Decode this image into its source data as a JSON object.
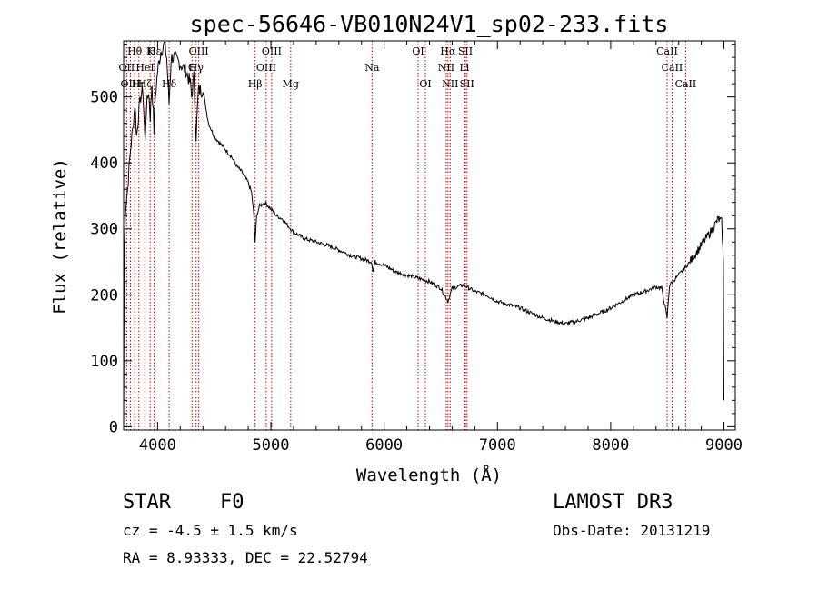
{
  "chart_data": {
    "type": "line",
    "title": "spec-56646-VB010N24V1_sp02-233.fits",
    "xlabel": "Wavelength (Å)",
    "ylabel": "Flux (relative)",
    "xlim": [
      3700,
      9100
    ],
    "ylim": [
      -5,
      585
    ],
    "xticks": [
      4000,
      5000,
      6000,
      7000,
      8000,
      9000
    ],
    "yticks": [
      0,
      100,
      200,
      300,
      400,
      500
    ],
    "spectrum_anchors": [
      [
        3700,
        0
      ],
      [
        3705,
        240
      ],
      [
        3715,
        330
      ],
      [
        3735,
        360
      ],
      [
        3760,
        420
      ],
      [
        3780,
        450
      ],
      [
        3800,
        490
      ],
      [
        3815,
        440
      ],
      [
        3830,
        470
      ],
      [
        3850,
        500
      ],
      [
        3870,
        510
      ],
      [
        3889,
        430
      ],
      [
        3900,
        480
      ],
      [
        3920,
        510
      ],
      [
        3935,
        470
      ],
      [
        3950,
        520
      ],
      [
        3968,
        450
      ],
      [
        3980,
        500
      ],
      [
        4000,
        540
      ],
      [
        4030,
        570
      ],
      [
        4060,
        580
      ],
      [
        4080,
        560
      ],
      [
        4101,
        490
      ],
      [
        4120,
        560
      ],
      [
        4150,
        560
      ],
      [
        4200,
        550
      ],
      [
        4250,
        540
      ],
      [
        4290,
        520
      ],
      [
        4300,
        500
      ],
      [
        4320,
        530
      ],
      [
        4340,
        440
      ],
      [
        4360,
        510
      ],
      [
        4400,
        510
      ],
      [
        4450,
        460
      ],
      [
        4500,
        440
      ],
      [
        4550,
        430
      ],
      [
        4600,
        420
      ],
      [
        4650,
        410
      ],
      [
        4700,
        395
      ],
      [
        4750,
        385
      ],
      [
        4800,
        370
      ],
      [
        4830,
        355
      ],
      [
        4850,
        320
      ],
      [
        4861,
        280
      ],
      [
        4875,
        320
      ],
      [
        4900,
        335
      ],
      [
        4950,
        340
      ],
      [
        5000,
        330
      ],
      [
        5050,
        320
      ],
      [
        5100,
        315
      ],
      [
        5150,
        305
      ],
      [
        5200,
        295
      ],
      [
        5300,
        285
      ],
      [
        5400,
        280
      ],
      [
        5500,
        275
      ],
      [
        5600,
        268
      ],
      [
        5700,
        260
      ],
      [
        5800,
        255
      ],
      [
        5890,
        250
      ],
      [
        5900,
        235
      ],
      [
        5920,
        250
      ],
      [
        6000,
        245
      ],
      [
        6100,
        235
      ],
      [
        6200,
        230
      ],
      [
        6300,
        225
      ],
      [
        6400,
        220
      ],
      [
        6500,
        210
      ],
      [
        6563,
        190
      ],
      [
        6600,
        210
      ],
      [
        6700,
        215
      ],
      [
        6800,
        205
      ],
      [
        6900,
        200
      ],
      [
        7000,
        190
      ],
      [
        7100,
        185
      ],
      [
        7200,
        180
      ],
      [
        7300,
        172
      ],
      [
        7400,
        165
      ],
      [
        7500,
        160
      ],
      [
        7600,
        156
      ],
      [
        7700,
        160
      ],
      [
        7800,
        165
      ],
      [
        7900,
        172
      ],
      [
        8000,
        180
      ],
      [
        8100,
        190
      ],
      [
        8200,
        200
      ],
      [
        8300,
        205
      ],
      [
        8400,
        212
      ],
      [
        8450,
        210
      ],
      [
        8498,
        165
      ],
      [
        8520,
        215
      ],
      [
        8600,
        230
      ],
      [
        8700,
        250
      ],
      [
        8800,
        275
      ],
      [
        8900,
        300
      ],
      [
        8950,
        315
      ],
      [
        8980,
        310
      ],
      [
        8995,
        250
      ],
      [
        9000,
        40
      ]
    ],
    "lines": [
      {
        "label": "Hθ",
        "x": 3798,
        "row": 0
      },
      {
        "label": "K",
        "x": 3934,
        "row": 0
      },
      {
        "label": "Hε",
        "x": 3970,
        "row": 0
      },
      {
        "label": "OIII",
        "x": 4363,
        "row": 0
      },
      {
        "label": "OIII",
        "x": 5007,
        "row": 0
      },
      {
        "label": "OI",
        "x": 6300,
        "row": 0
      },
      {
        "label": "Hα",
        "x": 6563,
        "row": 0
      },
      {
        "label": "SII",
        "x": 6717,
        "row": 0
      },
      {
        "label": "CaII",
        "x": 8498,
        "row": 0
      },
      {
        "label": "OII",
        "x": 3727,
        "row": 1
      },
      {
        "label": "HeI",
        "x": 3889,
        "row": 1
      },
      {
        "label": "G",
        "x": 4304,
        "row": 1
      },
      {
        "label": "Hγ",
        "x": 4340,
        "row": 1
      },
      {
        "label": "OIII",
        "x": 4959,
        "row": 1
      },
      {
        "label": "Na",
        "x": 5893,
        "row": 1
      },
      {
        "label": "NII",
        "x": 6548,
        "row": 1
      },
      {
        "label": "Li",
        "x": 6708,
        "row": 1
      },
      {
        "label": "CaII",
        "x": 8542,
        "row": 1
      },
      {
        "label": "OIII",
        "x": 3760,
        "row": 2
      },
      {
        "label": "Hη",
        "x": 3835,
        "row": 2
      },
      {
        "label": "Hζ",
        "x": 3889,
        "row": 2
      },
      {
        "label": "Hδ",
        "x": 4102,
        "row": 2
      },
      {
        "label": "Hβ",
        "x": 4861,
        "row": 2
      },
      {
        "label": "Mg",
        "x": 5175,
        "row": 2
      },
      {
        "label": "OI",
        "x": 6364,
        "row": 2
      },
      {
        "label": "NII",
        "x": 6583,
        "row": 2
      },
      {
        "label": "SII",
        "x": 6731,
        "row": 2
      },
      {
        "label": "CaII",
        "x": 8662,
        "row": 2
      }
    ],
    "colors": {
      "spectrum": "#000000",
      "lines": "#cc0000",
      "axes": "#000000"
    }
  },
  "info": {
    "class": "STAR",
    "subclass": "F0",
    "cz": "cz = -4.5 ± 1.5 km/s",
    "radec": "RA =   8.93333, DEC =  22.52794",
    "survey": "LAMOST DR3",
    "obsdate": "Obs-Date: 20131219"
  }
}
